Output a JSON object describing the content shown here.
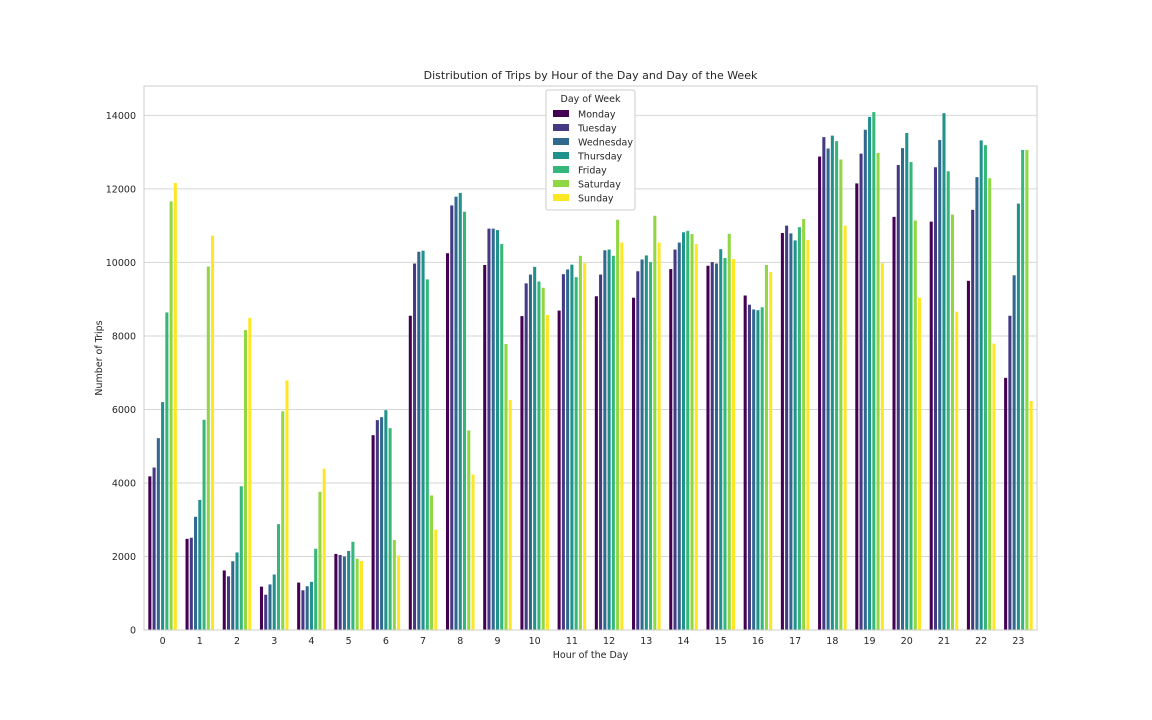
{
  "chart_data": {
    "type": "bar",
    "title": "Distribution of Trips by Hour of the Day and Day of the Week",
    "xlabel": "Hour of the Day",
    "ylabel": "Number of Trips",
    "ylim": [
      0,
      14800
    ],
    "yticks": [
      0,
      2000,
      4000,
      6000,
      8000,
      10000,
      12000,
      14000
    ],
    "grid": true,
    "legend_title": "Day of Week",
    "legend_position": "top-center",
    "categories": [
      "0",
      "1",
      "2",
      "3",
      "4",
      "5",
      "6",
      "7",
      "8",
      "9",
      "10",
      "11",
      "12",
      "13",
      "14",
      "15",
      "16",
      "17",
      "18",
      "19",
      "20",
      "21",
      "22",
      "23"
    ],
    "series": [
      {
        "name": "Monday",
        "color": "#440154",
        "values": [
          4180,
          2480,
          1620,
          1180,
          1290,
          2070,
          5300,
          8550,
          10250,
          9930,
          8540,
          8690,
          9080,
          9040,
          9820,
          9910,
          9100,
          10800,
          12880,
          12150,
          11240,
          11110,
          9500,
          6860
        ]
      },
      {
        "name": "Tuesday",
        "color": "#443983",
        "values": [
          4420,
          2510,
          1460,
          960,
          1080,
          2040,
          5710,
          9970,
          11550,
          10920,
          9430,
          9680,
          9670,
          9760,
          10350,
          10010,
          8850,
          11000,
          13410,
          12960,
          12650,
          12590,
          11430,
          8550
        ]
      },
      {
        "name": "Wednesday",
        "color": "#31688e",
        "values": [
          5220,
          3080,
          1870,
          1240,
          1190,
          2000,
          5790,
          10290,
          11790,
          10920,
          9670,
          9810,
          10330,
          10080,
          10540,
          9970,
          8720,
          10790,
          13100,
          13610,
          13110,
          13330,
          12320,
          9650
        ]
      },
      {
        "name": "Thursday",
        "color": "#21918c",
        "values": [
          6200,
          3540,
          2110,
          1510,
          1310,
          2150,
          5980,
          10320,
          11890,
          10880,
          9880,
          9940,
          10350,
          10190,
          10820,
          10360,
          8700,
          10600,
          13450,
          13960,
          13520,
          14060,
          13320,
          11600
        ]
      },
      {
        "name": "Friday",
        "color": "#35b779",
        "values": [
          8640,
          5720,
          3910,
          2880,
          2210,
          2400,
          5490,
          9540,
          11380,
          10500,
          9480,
          9600,
          10180,
          10010,
          10860,
          10120,
          8780,
          10960,
          13300,
          14090,
          12730,
          12480,
          13190,
          13060
        ]
      },
      {
        "name": "Saturday",
        "color": "#90d743",
        "values": [
          11660,
          9890,
          8160,
          5950,
          3760,
          1940,
          2450,
          3660,
          5430,
          7780,
          9310,
          10180,
          11160,
          11270,
          10770,
          10780,
          9930,
          11180,
          12800,
          12980,
          11140,
          11300,
          12290,
          13060
        ]
      },
      {
        "name": "Sunday",
        "color": "#fde725",
        "values": [
          12160,
          10730,
          8490,
          6790,
          4390,
          1880,
          2030,
          2730,
          4230,
          6260,
          8570,
          9980,
          10540,
          10540,
          10500,
          10090,
          9740,
          10610,
          11000,
          9980,
          9040,
          8660,
          7790,
          6230
        ]
      }
    ]
  }
}
